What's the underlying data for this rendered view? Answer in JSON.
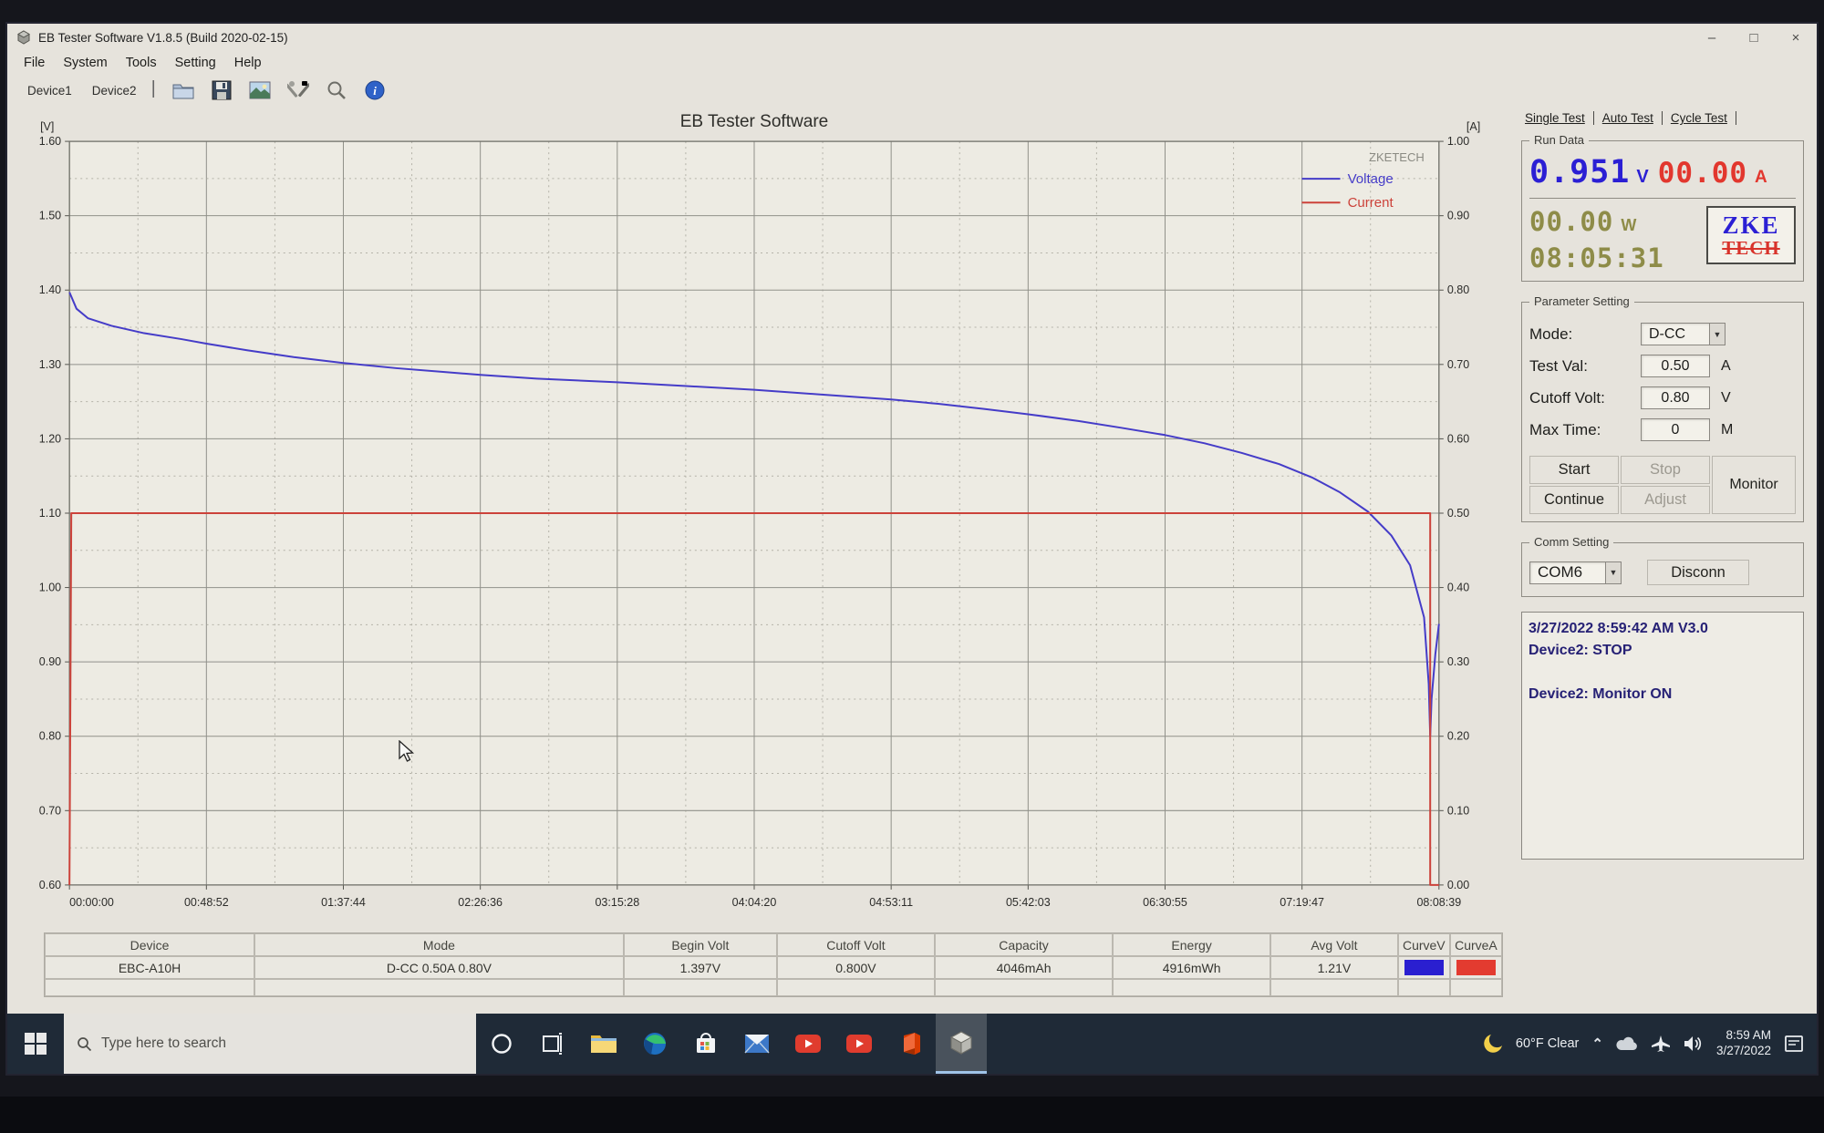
{
  "window": {
    "title": "EB Tester Software V1.8.5 (Build 2020-02-15)",
    "menu": [
      "File",
      "System",
      "Tools",
      "Setting",
      "Help"
    ],
    "device_tabs": [
      "Device1",
      "Device2"
    ],
    "toolbar_icon_names": [
      "open-file-icon",
      "save-icon",
      "export-image-icon",
      "tools-icon",
      "zoom-icon",
      "info-icon"
    ],
    "controls": {
      "minimize": "–",
      "maximize": "□",
      "close": "×"
    }
  },
  "chart_data": {
    "type": "line",
    "title": "EB Tester Software",
    "watermark": "ZKETECH",
    "grid": true,
    "legend_position": "top-right-inside",
    "left_axis": {
      "unit": "[V]",
      "min": 0.6,
      "max": 1.6,
      "ticks": [
        "1.60",
        "1.50",
        "1.40",
        "1.30",
        "1.20",
        "1.10",
        "1.00",
        "0.90",
        "0.80",
        "0.70",
        "0.60"
      ]
    },
    "right_axis": {
      "unit": "[A]",
      "min": 0.0,
      "max": 1.0,
      "ticks": [
        "1.00",
        "0.90",
        "0.80",
        "0.70",
        "0.60",
        "0.50",
        "0.40",
        "0.30",
        "0.20",
        "0.10",
        "0.00"
      ]
    },
    "x_axis": {
      "total_seconds": 29319,
      "ticks": [
        "00:00:00",
        "00:48:52",
        "01:37:44",
        "02:26:36",
        "03:15:28",
        "04:04:20",
        "04:53:11",
        "05:42:03",
        "06:30:55",
        "07:19:47",
        "08:08:39"
      ]
    },
    "legend": [
      {
        "label": "Voltage",
        "color": "#453cc8"
      },
      {
        "label": "Current",
        "color": "#cc423a"
      }
    ],
    "series": [
      {
        "name": "Voltage",
        "axis": "left",
        "color": "#453cc8",
        "points": [
          [
            0,
            1.397
          ],
          [
            150,
            1.375
          ],
          [
            400,
            1.362
          ],
          [
            900,
            1.352
          ],
          [
            1600,
            1.342
          ],
          [
            2400,
            1.334
          ],
          [
            2932,
            1.328
          ],
          [
            3800,
            1.319
          ],
          [
            4800,
            1.31
          ],
          [
            5864,
            1.302
          ],
          [
            7000,
            1.295
          ],
          [
            8000,
            1.29
          ],
          [
            8796,
            1.286
          ],
          [
            10000,
            1.281
          ],
          [
            11728,
            1.276
          ],
          [
            13200,
            1.271
          ],
          [
            14660,
            1.266
          ],
          [
            16000,
            1.26
          ],
          [
            17592,
            1.253
          ],
          [
            18600,
            1.247
          ],
          [
            19600,
            1.24
          ],
          [
            20524,
            1.233
          ],
          [
            21600,
            1.224
          ],
          [
            22500,
            1.215
          ],
          [
            23456,
            1.205
          ],
          [
            24300,
            1.194
          ],
          [
            25100,
            1.181
          ],
          [
            25900,
            1.166
          ],
          [
            26600,
            1.148
          ],
          [
            27200,
            1.128
          ],
          [
            27800,
            1.102
          ],
          [
            28300,
            1.07
          ],
          [
            28700,
            1.03
          ],
          [
            29000,
            0.96
          ],
          [
            29100,
            0.87
          ],
          [
            29131,
            0.8
          ],
          [
            29160,
            0.85
          ],
          [
            29240,
            0.91
          ],
          [
            29319,
            0.951
          ]
        ]
      },
      {
        "name": "Current",
        "axis": "right",
        "color": "#cc423a",
        "points": [
          [
            0,
            0
          ],
          [
            40,
            0.5
          ],
          [
            29131,
            0.5
          ],
          [
            29131,
            0
          ],
          [
            29319,
            0
          ]
        ]
      }
    ]
  },
  "right_panel": {
    "tabs": [
      "Single Test",
      "Auto Test",
      "Cycle Test"
    ],
    "run_data": {
      "title": "Run Data",
      "voltage": "0.951",
      "voltage_unit": "V",
      "current": "00.00",
      "current_unit": "A",
      "power": "00.00",
      "power_unit": "W",
      "time": "08:05:31",
      "logo_top": "ZKE",
      "logo_bottom": "TECH"
    },
    "parameter_setting": {
      "title": "Parameter Setting",
      "mode_label": "Mode:",
      "mode_value": "D-CC",
      "test_val_label": "Test Val:",
      "test_val_value": "0.50",
      "test_val_unit": "A",
      "cutoff_label": "Cutoff Volt:",
      "cutoff_value": "0.80",
      "cutoff_unit": "V",
      "max_time_label": "Max Time:",
      "max_time_value": "0",
      "max_time_unit": "M",
      "start": "Start",
      "stop": "Stop",
      "continue": "Continue",
      "adjust": "Adjust",
      "monitor": "Monitor"
    },
    "comm_setting": {
      "title": "Comm Setting",
      "port": "COM6",
      "disconnect": "Disconn"
    },
    "log": {
      "line1": "3/27/2022 8:59:42 AM  V3.0",
      "line2": "Device2: STOP",
      "line3": "",
      "line4": "Device2: Monitor ON"
    }
  },
  "results_table": {
    "headers": [
      "Device",
      "Mode",
      "Begin Volt",
      "Cutoff Volt",
      "Capacity",
      "Energy",
      "Avg Volt",
      "CurveV",
      "CurveA"
    ],
    "row": {
      "device": "EBC-A10H",
      "mode": "D-CC 0.50A 0.80V",
      "begin_volt": "1.397V",
      "cutoff_volt": "0.800V",
      "capacity": "4046mAh",
      "energy": "4916mWh",
      "avg_volt": "1.21V"
    },
    "curve_v_color": "#2a1fd0",
    "curve_a_color": "#e33b30"
  },
  "taskbar": {
    "search_placeholder": "Type here to search",
    "app_icon_names": [
      "start-button",
      "search-icon",
      "cortana-icon",
      "task-view-icon",
      "file-explorer-icon",
      "edge-icon",
      "store-icon",
      "mail-icon",
      "youtube-icon",
      "youtube-icon-2",
      "office-icon",
      "eb-tester-icon"
    ],
    "tray_icon_names": [
      "moon-icon",
      "chevron-up-icon",
      "cloud-icon",
      "airplane-icon",
      "volume-icon",
      "action-center-icon"
    ],
    "tray": {
      "weather": "60°F Clear",
      "time": "8:59 AM",
      "date": "3/27/2022"
    }
  }
}
